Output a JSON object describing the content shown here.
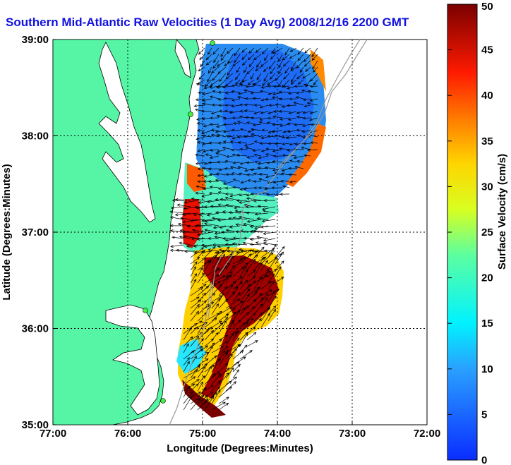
{
  "title": "Southern Mid-Atlantic Raw Velocities (1 Day Avg) 2008/12/16 2200 GMT",
  "x_axis": {
    "label": "Longitude (Degrees:Minutes)",
    "ticks": [
      "77:00",
      "76:00",
      "75:00",
      "74:00",
      "73:00",
      "72:00"
    ],
    "values": [
      -77,
      -76,
      -75,
      -74,
      -73,
      -72
    ]
  },
  "y_axis": {
    "label": "Latitude (Degrees:Minutes)",
    "ticks": [
      "35:00",
      "36:00",
      "37:00",
      "38:00",
      "39:00"
    ],
    "values": [
      35,
      36,
      37,
      38,
      39
    ]
  },
  "colorbar": {
    "label": "Surface Velocity (cm/s)",
    "ticks": [
      "0",
      "5",
      "10",
      "15",
      "20",
      "25",
      "30",
      "35",
      "40",
      "45",
      "50"
    ],
    "min": 0,
    "max": 50
  },
  "colors": {
    "land": "#55f5a5",
    "water": "#ffffff",
    "title": "#1010e0",
    "low": "#0a3cff",
    "high": "#7a0000"
  }
}
